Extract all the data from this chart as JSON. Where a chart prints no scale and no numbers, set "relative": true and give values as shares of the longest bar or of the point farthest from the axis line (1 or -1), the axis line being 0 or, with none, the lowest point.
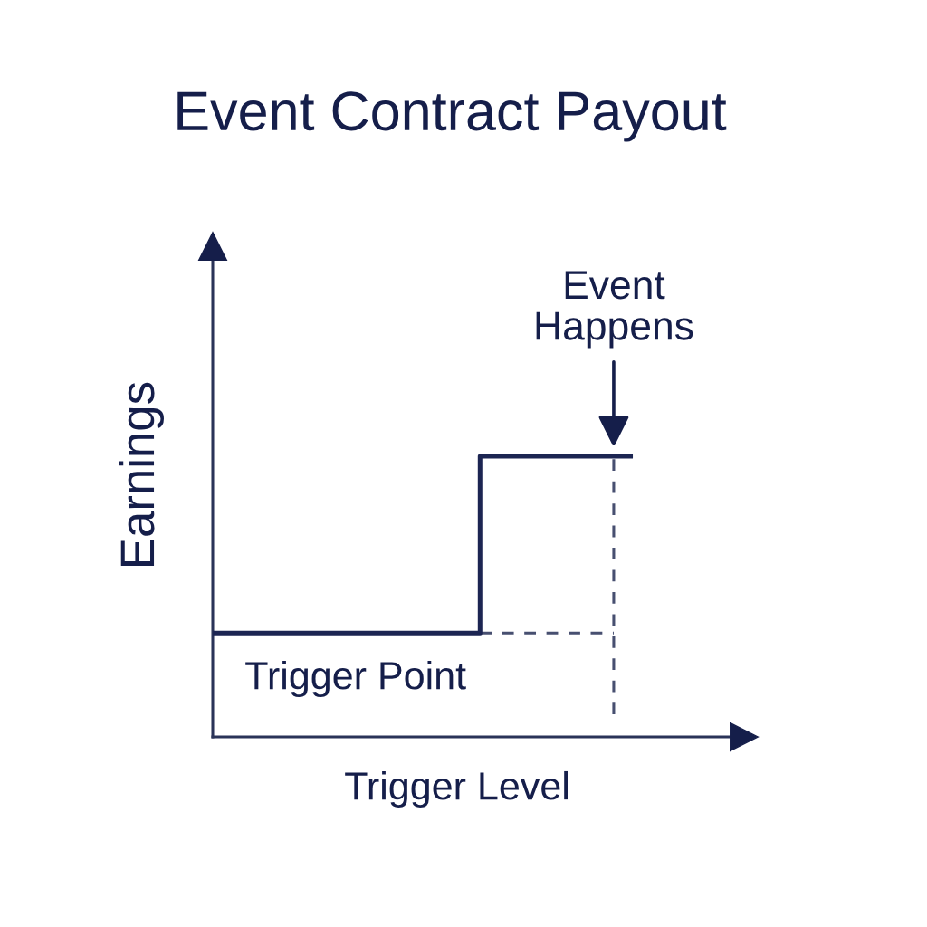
{
  "chart_data": {
    "type": "step",
    "title": "Event Contract Payout",
    "xlabel": "Trigger Level",
    "ylabel": "Earnings",
    "relative": true,
    "categories": [
      null,
      null,
      null,
      null,
      null,
      null,
      null,
      null,
      null,
      null,
      null,
      null,
      null,
      null,
      null,
      null,
      null,
      null,
      null,
      null,
      null,
      null,
      null
    ],
    "series": [
      {
        "color": "#1c2552",
        "values": [
          0.37,
          0.37,
          0.37,
          0.37,
          0.37,
          0.37,
          0.37,
          0.37,
          0.37,
          0.37,
          0.37,
          0.37,
          0.37,
          0.37,
          1,
          1,
          1,
          1,
          1,
          1,
          1,
          1,
          1
        ]
      },
      {
        "type": "line",
        "line_style": "dashed",
        "color": "#474f70",
        "values": [
          null,
          null,
          null,
          null,
          null,
          null,
          null,
          null,
          null,
          null,
          null,
          null,
          null,
          null,
          0.37,
          0.37,
          0.37,
          0.37,
          0.37,
          0.37,
          0.37,
          0.37,
          null
        ]
      },
      {
        "line_style": "dashed",
        "color": "#474f70",
        "values": [
          null,
          null,
          null,
          null,
          null,
          null,
          null,
          null,
          null,
          null,
          null,
          null,
          null,
          null,
          null,
          null,
          null,
          null,
          null,
          null,
          1,
          0.07,
          null
        ]
      }
    ],
    "annotations": [
      "Event\nHappens",
      "Trigger Point"
    ]
  }
}
